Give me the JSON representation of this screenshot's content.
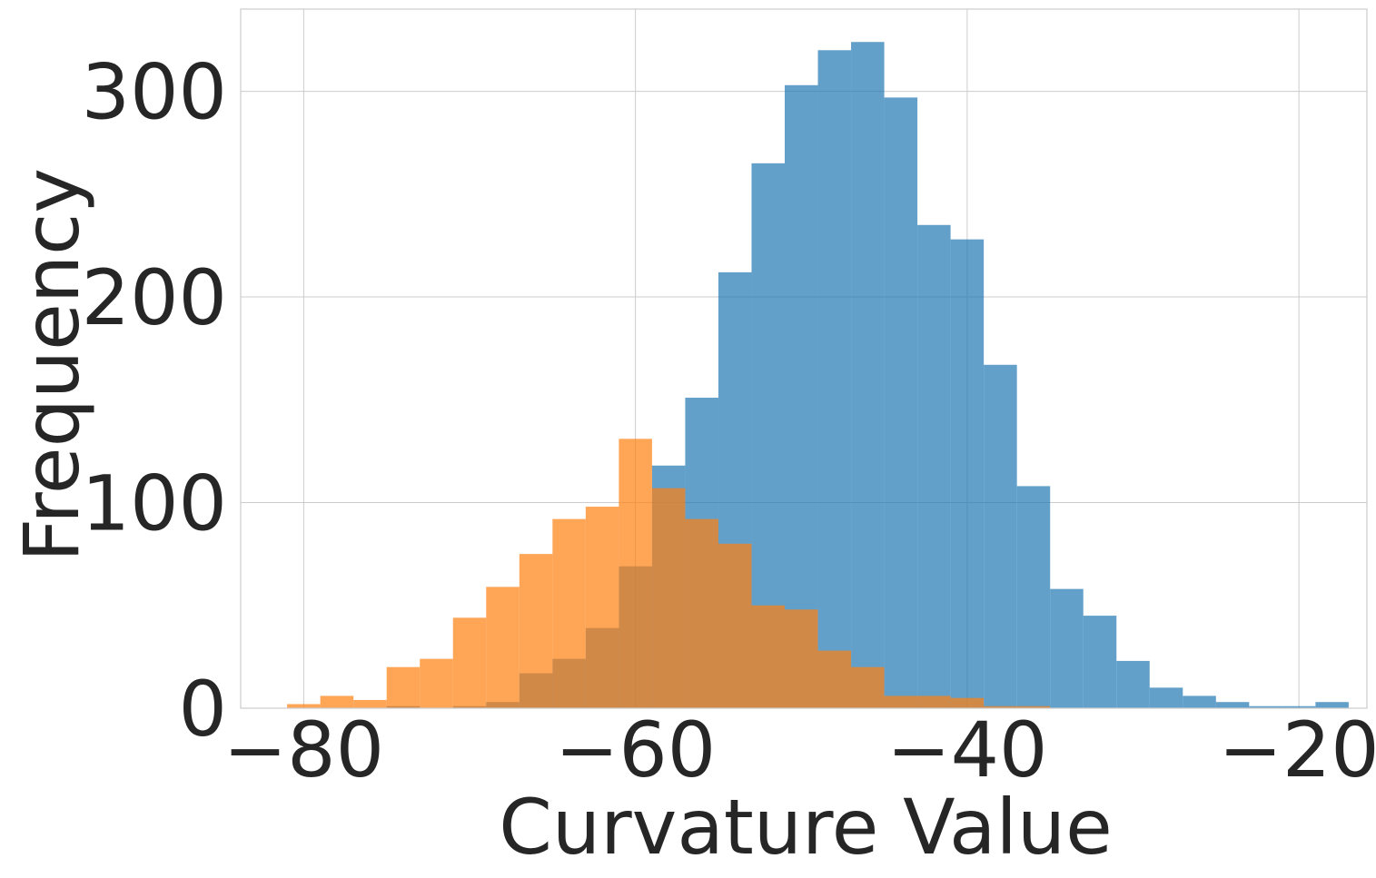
{
  "chart_data": {
    "type": "histogram",
    "title": "",
    "xlabel": "Curvature Value",
    "ylabel": "Frequency",
    "xlim": [
      -83.8,
      -15.9
    ],
    "ylim": [
      0,
      340
    ],
    "xticks": [
      -80,
      -60,
      -40,
      -20
    ],
    "xtick_labels": [
      "−80",
      "−60",
      "−40",
      "−20"
    ],
    "yticks": [
      0,
      100,
      200,
      300
    ],
    "ytick_labels": [
      "0",
      "100",
      "200",
      "300"
    ],
    "grid": true,
    "legend": false,
    "series": [
      {
        "color": "#1f77b4",
        "opacity": 0.7,
        "bin_width": 2,
        "bins_start": [
          -77,
          -75,
          -73,
          -71,
          -69,
          -67,
          -65,
          -63,
          -61,
          -59,
          -57,
          -55,
          -53,
          -51,
          -49,
          -47,
          -45,
          -43,
          -41,
          -39,
          -37,
          -35,
          -33,
          -31,
          -29,
          -27,
          -25,
          -23,
          -21,
          -19
        ],
        "values": [
          0,
          1,
          0,
          1,
          3,
          17,
          24,
          39,
          69,
          118,
          151,
          212,
          265,
          303,
          320,
          324,
          297,
          235,
          228,
          167,
          108,
          58,
          45,
          23,
          10,
          6,
          3,
          1,
          1,
          3
        ]
      },
      {
        "color": "#ff7f0e",
        "opacity": 0.7,
        "bin_width": 2,
        "bins_start": [
          -81,
          -79,
          -77,
          -75,
          -73,
          -71,
          -69,
          -67,
          -65,
          -63,
          -61,
          -59,
          -57,
          -55,
          -53,
          -51,
          -49,
          -47,
          -45,
          -43,
          -41,
          -39,
          -37
        ],
        "values": [
          2,
          6,
          4,
          20,
          24,
          44,
          59,
          75,
          92,
          98,
          131,
          107,
          92,
          80,
          50,
          48,
          28,
          20,
          6,
          6,
          5,
          1,
          1
        ]
      }
    ]
  }
}
